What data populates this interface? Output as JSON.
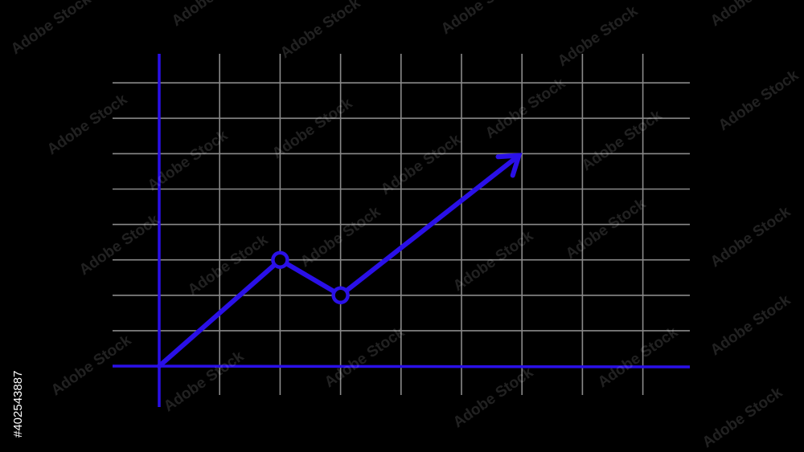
{
  "chart_data": {
    "type": "line",
    "title": "",
    "xlabel": "",
    "ylabel": "",
    "x": [
      0,
      2,
      3,
      5.95
    ],
    "series": [
      {
        "values": [
          0,
          3,
          2,
          5.95
        ],
        "end_marker": "arrow"
      }
    ],
    "markers_at_index": [
      1,
      2
    ],
    "xlim": [
      -0.8,
      8.8
    ],
    "ylim": [
      -1,
      8.6
    ],
    "x_grid": [
      1,
      2,
      3,
      4,
      5,
      6,
      7,
      8
    ],
    "y_grid": [
      1,
      2,
      3,
      4,
      5,
      6,
      7,
      8
    ],
    "grid": true,
    "legend": "none"
  },
  "colors": {
    "background": "#000000",
    "grid": "#8a8a8a",
    "axes": "#2a10e8",
    "line": "#2a10e8",
    "marker_fill": "#000000"
  },
  "watermark": {
    "text": "Adobe Stock",
    "stock_id": "#402543887"
  }
}
